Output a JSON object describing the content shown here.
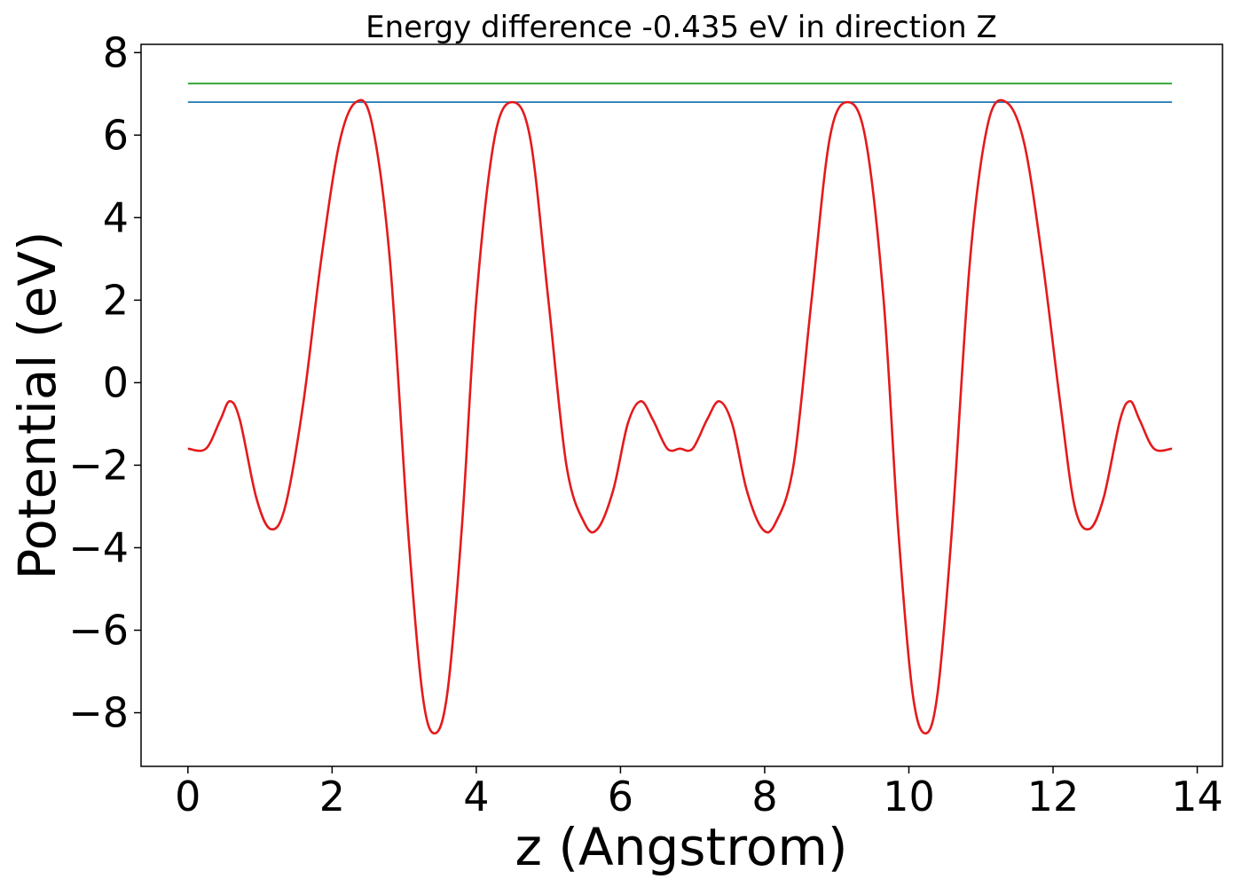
{
  "chart_data": {
    "type": "line",
    "title": "Energy difference -0.435 eV in direction Z",
    "xlabel": "z (Angstrom)",
    "ylabel": "Potential (eV)",
    "xlim": [
      -0.65,
      14.35
    ],
    "ylim": [
      -9.3,
      8.2
    ],
    "xticks": [
      0,
      2,
      4,
      6,
      8,
      10,
      12,
      14
    ],
    "xtick_labels": [
      "0",
      "2",
      "4",
      "6",
      "8",
      "10",
      "12",
      "14"
    ],
    "yticks": [
      -8,
      -6,
      -4,
      -2,
      0,
      2,
      4,
      6,
      8
    ],
    "ytick_labels": [
      "−8",
      "−6",
      "−4",
      "−2",
      "0",
      "2",
      "4",
      "6",
      "8"
    ],
    "grid": false,
    "series": [
      {
        "color": "#2ca02c",
        "x": [
          0,
          13.65
        ],
        "y": [
          7.25,
          7.25
        ]
      },
      {
        "color": "#1f77b4",
        "x": [
          0,
          13.65
        ],
        "y": [
          6.8,
          6.8
        ]
      },
      {
        "color": "#e41a1c",
        "x": [
          0,
          0.25,
          0.45,
          0.58,
          0.72,
          0.95,
          1.15,
          1.35,
          1.6,
          1.85,
          2.1,
          2.33,
          2.55,
          2.8,
          3.05,
          3.25,
          3.42,
          3.6,
          3.8,
          4.0,
          4.25,
          4.5,
          4.75,
          5.0,
          5.25,
          5.5,
          5.68,
          5.9,
          6.1,
          6.28,
          6.45,
          6.65,
          6.825,
          7.0,
          7.2,
          7.37,
          7.55,
          7.75,
          7.97,
          8.15,
          8.4,
          8.65,
          8.9,
          9.15,
          9.4,
          9.65,
          9.85,
          10.05,
          10.23,
          10.4,
          10.6,
          10.85,
          11.1,
          11.35,
          11.6,
          11.85,
          12.1,
          12.3,
          12.5,
          12.7,
          12.93,
          13.07,
          13.2,
          13.4,
          13.65
        ],
        "y": [
          -1.6,
          -1.6,
          -0.9,
          -0.45,
          -0.9,
          -2.8,
          -3.55,
          -3.0,
          -0.5,
          3.0,
          5.8,
          6.8,
          6.3,
          3.0,
          -3.5,
          -7.5,
          -8.5,
          -7.5,
          -3.5,
          2.0,
          5.9,
          6.8,
          5.9,
          2.0,
          -2.0,
          -3.4,
          -3.55,
          -2.6,
          -1.0,
          -0.45,
          -0.9,
          -1.6,
          -1.6,
          -1.6,
          -0.9,
          -0.45,
          -1.0,
          -2.6,
          -3.55,
          -3.4,
          -2.0,
          2.0,
          5.9,
          6.8,
          5.9,
          2.0,
          -3.5,
          -7.5,
          -8.5,
          -7.5,
          -3.5,
          3.0,
          6.3,
          6.8,
          5.8,
          3.0,
          -0.5,
          -3.0,
          -3.55,
          -2.8,
          -0.9,
          -0.45,
          -0.9,
          -1.6,
          -1.6
        ]
      }
    ]
  }
}
